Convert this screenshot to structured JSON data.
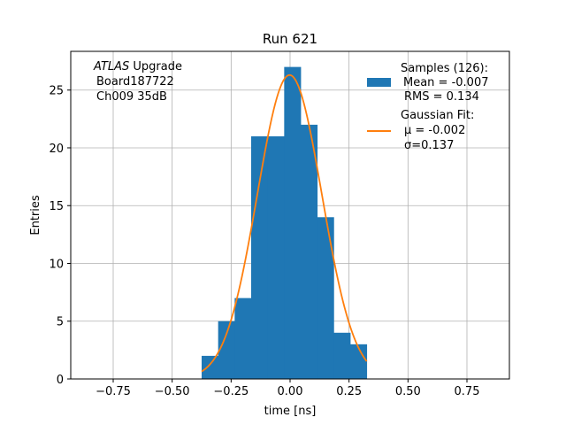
{
  "chart_data": {
    "type": "bar",
    "title": "Run 621",
    "xlabel": "time [ns]",
    "ylabel": "Entries",
    "xlim": [
      -0.93,
      0.93
    ],
    "ylim": [
      0,
      28.35
    ],
    "xticks": [
      -0.75,
      -0.5,
      -0.25,
      0.0,
      0.25,
      0.5,
      0.75
    ],
    "xtick_labels": [
      "−0.75",
      "−0.50",
      "−0.25",
      "0.00",
      "0.25",
      "0.50",
      "0.75"
    ],
    "yticks": [
      0,
      5,
      10,
      15,
      20,
      25
    ],
    "ytick_labels": [
      "0",
      "5",
      "10",
      "15",
      "20",
      "25"
    ],
    "grid": true,
    "legend_position": "top-right",
    "annotation": {
      "line1_italic": "ATLAS",
      "line1_rest": " Upgrade",
      "line2": "Board187722",
      "line3": "Ch009 35dB"
    },
    "series": [
      {
        "kind": "histogram",
        "color": "#1f77b4",
        "legend_lines": [
          "Samples (126):",
          "Mean = -0.007",
          "RMS = 0.134"
        ],
        "bin_edges": [
          -0.375,
          -0.305,
          -0.235,
          -0.165,
          -0.095,
          -0.025,
          0.045,
          0.115,
          0.185,
          0.255,
          0.325
        ],
        "counts": [
          2,
          5,
          7,
          21,
          21,
          27,
          22,
          14,
          4,
          3
        ]
      },
      {
        "kind": "line",
        "color": "#ff7f0e",
        "legend_lines": [
          "Gaussian Fit:",
          "μ = -0.002",
          "σ=0.137"
        ],
        "fit": {
          "amplitude": 26.3,
          "mu": -0.002,
          "sigma": 0.137,
          "x_start": -0.375,
          "x_end": 0.325
        }
      }
    ]
  }
}
